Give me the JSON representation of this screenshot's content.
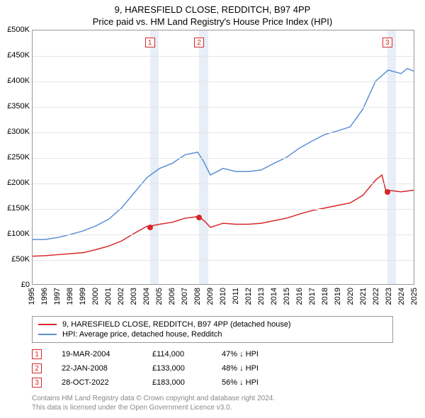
{
  "title_line1": "9, HARESFIELD CLOSE, REDDITCH, B97 4PP",
  "title_line2": "Price paid vs. HM Land Registry's House Price Index (HPI)",
  "chart": {
    "type": "line",
    "background_color": "#ffffff",
    "grid_color": "#e5e5e5",
    "border_color": "#999999",
    "ylim": [
      0,
      500000
    ],
    "ytick_step": 50000,
    "ytick_prefix": "£",
    "ytick_suffix": "K",
    "xlim": [
      1995,
      2025
    ],
    "xticks": [
      1995,
      1996,
      1997,
      1998,
      1999,
      2000,
      2001,
      2002,
      2003,
      2004,
      2005,
      2006,
      2007,
      2008,
      2009,
      2010,
      2011,
      2012,
      2013,
      2014,
      2015,
      2016,
      2017,
      2018,
      2019,
      2020,
      2021,
      2022,
      2023,
      2024,
      2025
    ],
    "series": [
      {
        "name": "price_paid",
        "label": "9, HARESFIELD CLOSE, REDDITCH, B97 4PP (detached house)",
        "color": "#d62728",
        "line_width": 1.5,
        "points": [
          [
            1995,
            55000
          ],
          [
            1996,
            56000
          ],
          [
            1997,
            58000
          ],
          [
            1998,
            60000
          ],
          [
            1999,
            62000
          ],
          [
            2000,
            68000
          ],
          [
            2001,
            75000
          ],
          [
            2002,
            85000
          ],
          [
            2003,
            100000
          ],
          [
            2004,
            114000
          ],
          [
            2004.2,
            114000
          ],
          [
            2005,
            118000
          ],
          [
            2006,
            122000
          ],
          [
            2007,
            130000
          ],
          [
            2008,
            133000
          ],
          [
            2008.06,
            133000
          ],
          [
            2008.5,
            125000
          ],
          [
            2009,
            112000
          ],
          [
            2010,
            120000
          ],
          [
            2011,
            118000
          ],
          [
            2012,
            118000
          ],
          [
            2013,
            120000
          ],
          [
            2014,
            125000
          ],
          [
            2015,
            130000
          ],
          [
            2016,
            138000
          ],
          [
            2017,
            145000
          ],
          [
            2018,
            150000
          ],
          [
            2019,
            155000
          ],
          [
            2020,
            160000
          ],
          [
            2021,
            175000
          ],
          [
            2022,
            205000
          ],
          [
            2022.5,
            215000
          ],
          [
            2022.82,
            183000
          ],
          [
            2023,
            185000
          ],
          [
            2024,
            182000
          ],
          [
            2025,
            185000
          ]
        ]
      },
      {
        "name": "hpi",
        "label": "HPI: Average price, detached house, Redditch",
        "color": "#5b8fd6",
        "line_width": 1.5,
        "points": [
          [
            1995,
            88000
          ],
          [
            1996,
            88000
          ],
          [
            1997,
            92000
          ],
          [
            1998,
            98000
          ],
          [
            1999,
            105000
          ],
          [
            2000,
            115000
          ],
          [
            2001,
            128000
          ],
          [
            2002,
            150000
          ],
          [
            2003,
            180000
          ],
          [
            2004,
            210000
          ],
          [
            2005,
            228000
          ],
          [
            2006,
            238000
          ],
          [
            2007,
            255000
          ],
          [
            2008,
            260000
          ],
          [
            2008.5,
            240000
          ],
          [
            2009,
            215000
          ],
          [
            2010,
            228000
          ],
          [
            2011,
            222000
          ],
          [
            2012,
            222000
          ],
          [
            2013,
            225000
          ],
          [
            2014,
            238000
          ],
          [
            2015,
            250000
          ],
          [
            2016,
            268000
          ],
          [
            2017,
            282000
          ],
          [
            2018,
            295000
          ],
          [
            2019,
            302000
          ],
          [
            2020,
            310000
          ],
          [
            2021,
            345000
          ],
          [
            2022,
            400000
          ],
          [
            2023,
            422000
          ],
          [
            2024,
            415000
          ],
          [
            2024.5,
            425000
          ],
          [
            2025,
            420000
          ]
        ]
      }
    ],
    "marker_bands": [
      {
        "x": 2004.2,
        "width_years": 0.7,
        "color": "#e7eef7"
      },
      {
        "x": 2008.06,
        "width_years": 0.7,
        "color": "#e7eef7"
      },
      {
        "x": 2022.82,
        "width_years": 0.7,
        "color": "#e7eef7"
      }
    ],
    "markers": [
      {
        "num": "1",
        "x": 2004.2,
        "y": 114000
      },
      {
        "num": "2",
        "x": 2008.06,
        "y": 133000
      },
      {
        "num": "3",
        "x": 2022.82,
        "y": 183000
      }
    ]
  },
  "legend": {
    "items": [
      {
        "color": "#d62728",
        "label": "9, HARESFIELD CLOSE, REDDITCH, B97 4PP (detached house)"
      },
      {
        "color": "#5b8fd6",
        "label": "HPI: Average price, detached house, Redditch"
      }
    ]
  },
  "sales": [
    {
      "num": "1",
      "date": "19-MAR-2004",
      "price": "£114,000",
      "diff": "47% ↓ HPI"
    },
    {
      "num": "2",
      "date": "22-JAN-2008",
      "price": "£133,000",
      "diff": "48% ↓ HPI"
    },
    {
      "num": "3",
      "date": "28-OCT-2022",
      "price": "£183,000",
      "diff": "56% ↓ HPI"
    }
  ],
  "footer_line1": "Contains HM Land Registry data © Crown copyright and database right 2024.",
  "footer_line2": "This data is licensed under the Open Government Licence v3.0."
}
